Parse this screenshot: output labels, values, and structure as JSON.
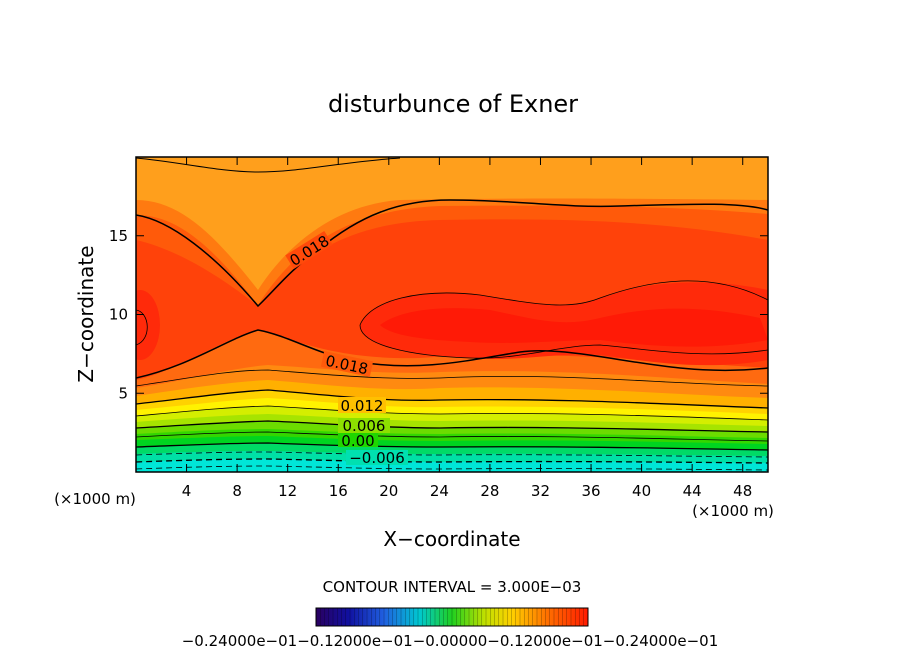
{
  "chart_data": {
    "type": "contour",
    "title": "disturbunce of Exner",
    "xlabel": "X−coordinate",
    "ylabel": "Z−coordinate",
    "x_unit": "(×1000 m)",
    "y_unit": "(×1000 m)",
    "xlim": [
      0,
      50
    ],
    "ylim": [
      0,
      20
    ],
    "xticks": [
      "4",
      "8",
      "12",
      "16",
      "20",
      "24",
      "28",
      "32",
      "36",
      "40",
      "44",
      "48"
    ],
    "xtick_values": [
      4,
      8,
      12,
      16,
      20,
      24,
      28,
      32,
      36,
      40,
      44,
      48
    ],
    "yticks": [
      "5",
      "10",
      "15"
    ],
    "ytick_values": [
      5,
      10,
      15
    ],
    "contour_interval_text": "CONTOUR INTERVAL = 3.000E−03",
    "contour_labels": [
      {
        "text": "0.018",
        "x": 14.2,
        "z": 14.0
      },
      {
        "text": "0.018",
        "x": 18.0,
        "z": 6.5
      },
      {
        "text": "0.012",
        "x": 18.0,
        "z": 4.1
      },
      {
        "text": "0.006",
        "x": 18.0,
        "z": 2.9
      },
      {
        "text": "0.00",
        "x": 17.5,
        "z": 2.0
      },
      {
        "text": "−0.006",
        "x": 19.0,
        "z": 0.9
      }
    ],
    "colorbar": {
      "range": [
        -0.024,
        0.024
      ],
      "labels": "−0.24000e−01−0.12000e−01−0.00000−0.12000e−01−0.24000e−01"
    }
  }
}
